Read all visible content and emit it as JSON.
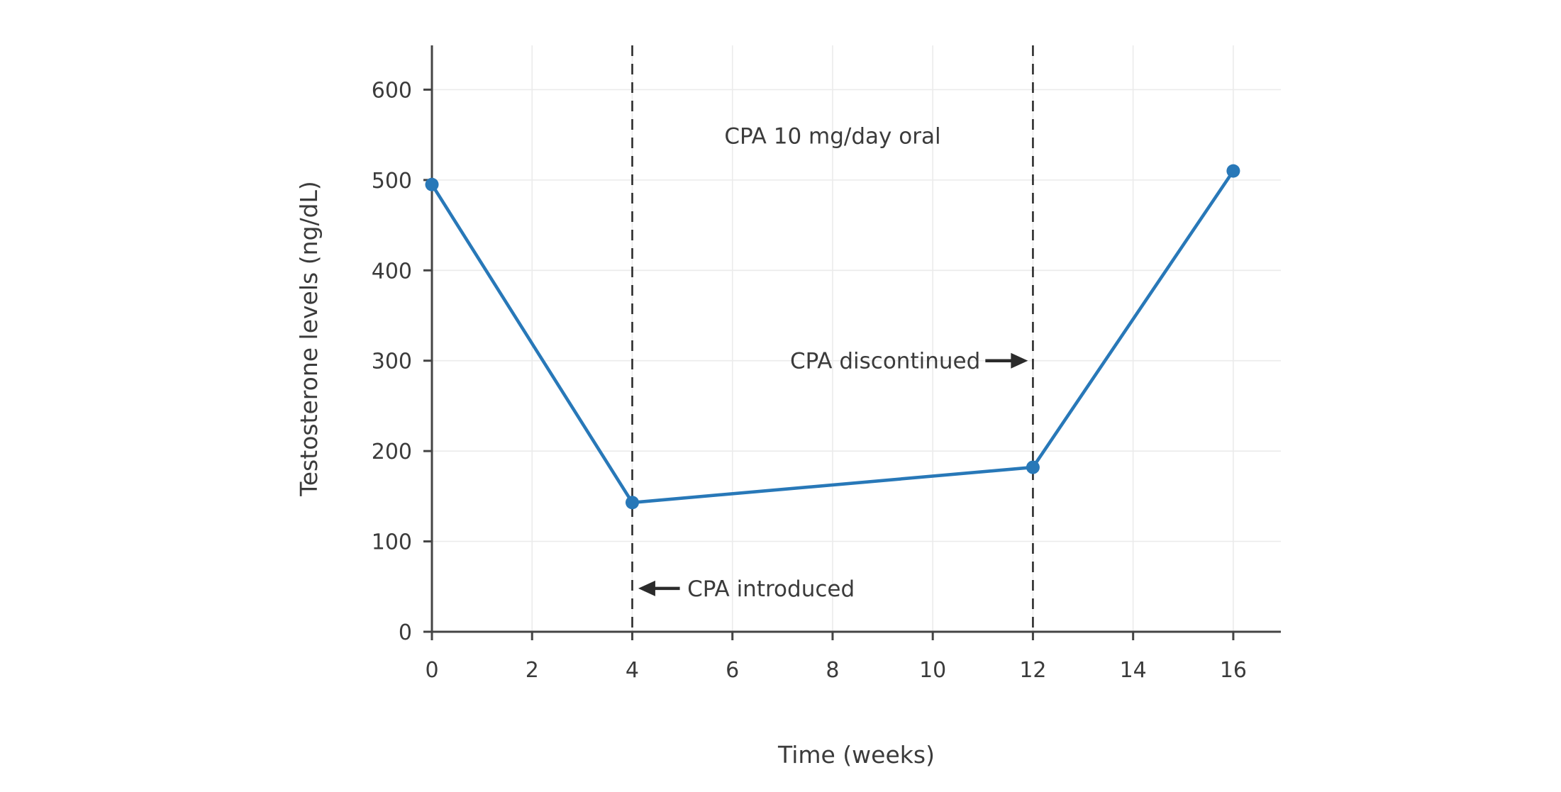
{
  "chart_data": {
    "type": "line",
    "series_name": "Testosterone levels",
    "x": [
      0,
      4,
      12,
      16
    ],
    "y": [
      495,
      143,
      182,
      510
    ],
    "xlabel": "Time (weeks)",
    "ylabel": "Testosterone levels (ng/dL)",
    "xticks": [
      0,
      2,
      4,
      6,
      8,
      10,
      12,
      14,
      16
    ],
    "yticks": [
      0,
      100,
      200,
      300,
      400,
      500,
      600
    ],
    "xlim": [
      0,
      16.95
    ],
    "ylim": [
      0,
      649
    ],
    "grid": true,
    "legend": "none",
    "line_color": "#2878b8",
    "marker_color": "#2878b8",
    "vlines": [
      {
        "x": 4,
        "style": "dashed",
        "color": "#2b2b2b"
      },
      {
        "x": 12,
        "style": "dashed",
        "color": "#2b2b2b"
      }
    ],
    "annotations": [
      {
        "id": "cpa-dose-annotation",
        "text": "CPA 10 mg/day oral",
        "x": 8.0,
        "y": 549,
        "anchor": "middle"
      },
      {
        "id": "cpa-introduced-annotation",
        "text": "CPA introduced",
        "x": 5.1,
        "y": 48,
        "anchor": "start",
        "arrow": {
          "tail_x": 4.95,
          "tail_y": 48,
          "tip_x": 4.12,
          "tip_y": 48
        }
      },
      {
        "id": "cpa-discontinued-annotation",
        "text": "CPA discontinued",
        "x": 10.95,
        "y": 300,
        "anchor": "end",
        "arrow": {
          "tail_x": 11.05,
          "tail_y": 300,
          "tip_x": 11.9,
          "tip_y": 300
        }
      }
    ]
  },
  "colors": {
    "axis": "#444444",
    "tick_label": "#3b3b3b",
    "grid": "#ebebeb",
    "annotation": "#3b3b3b",
    "arrow": "#2b2b2b",
    "background": "#ffffff"
  }
}
